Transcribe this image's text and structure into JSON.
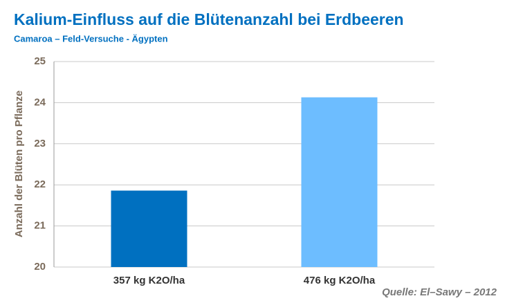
{
  "chart_data": {
    "type": "bar",
    "title": "Kalium-Einfluss auf die Blütenanzahl bei Erdbeeren",
    "subtitle": "Camaroa – Feld-Versuche - Ägypten",
    "y_label": "Anzahl der Blüten pro Pflanze",
    "categories": [
      "357 kg K2O/ha",
      "476 kg K2O/ha"
    ],
    "values": [
      21.86,
      24.13
    ],
    "colors": [
      "#0070c0",
      "#6dbdff"
    ],
    "ylim": [
      20,
      25
    ],
    "yticks": [
      20,
      21,
      22,
      23,
      24,
      25
    ],
    "grid": true,
    "annotation": "Quelle:  El–Sawy – 2012"
  }
}
